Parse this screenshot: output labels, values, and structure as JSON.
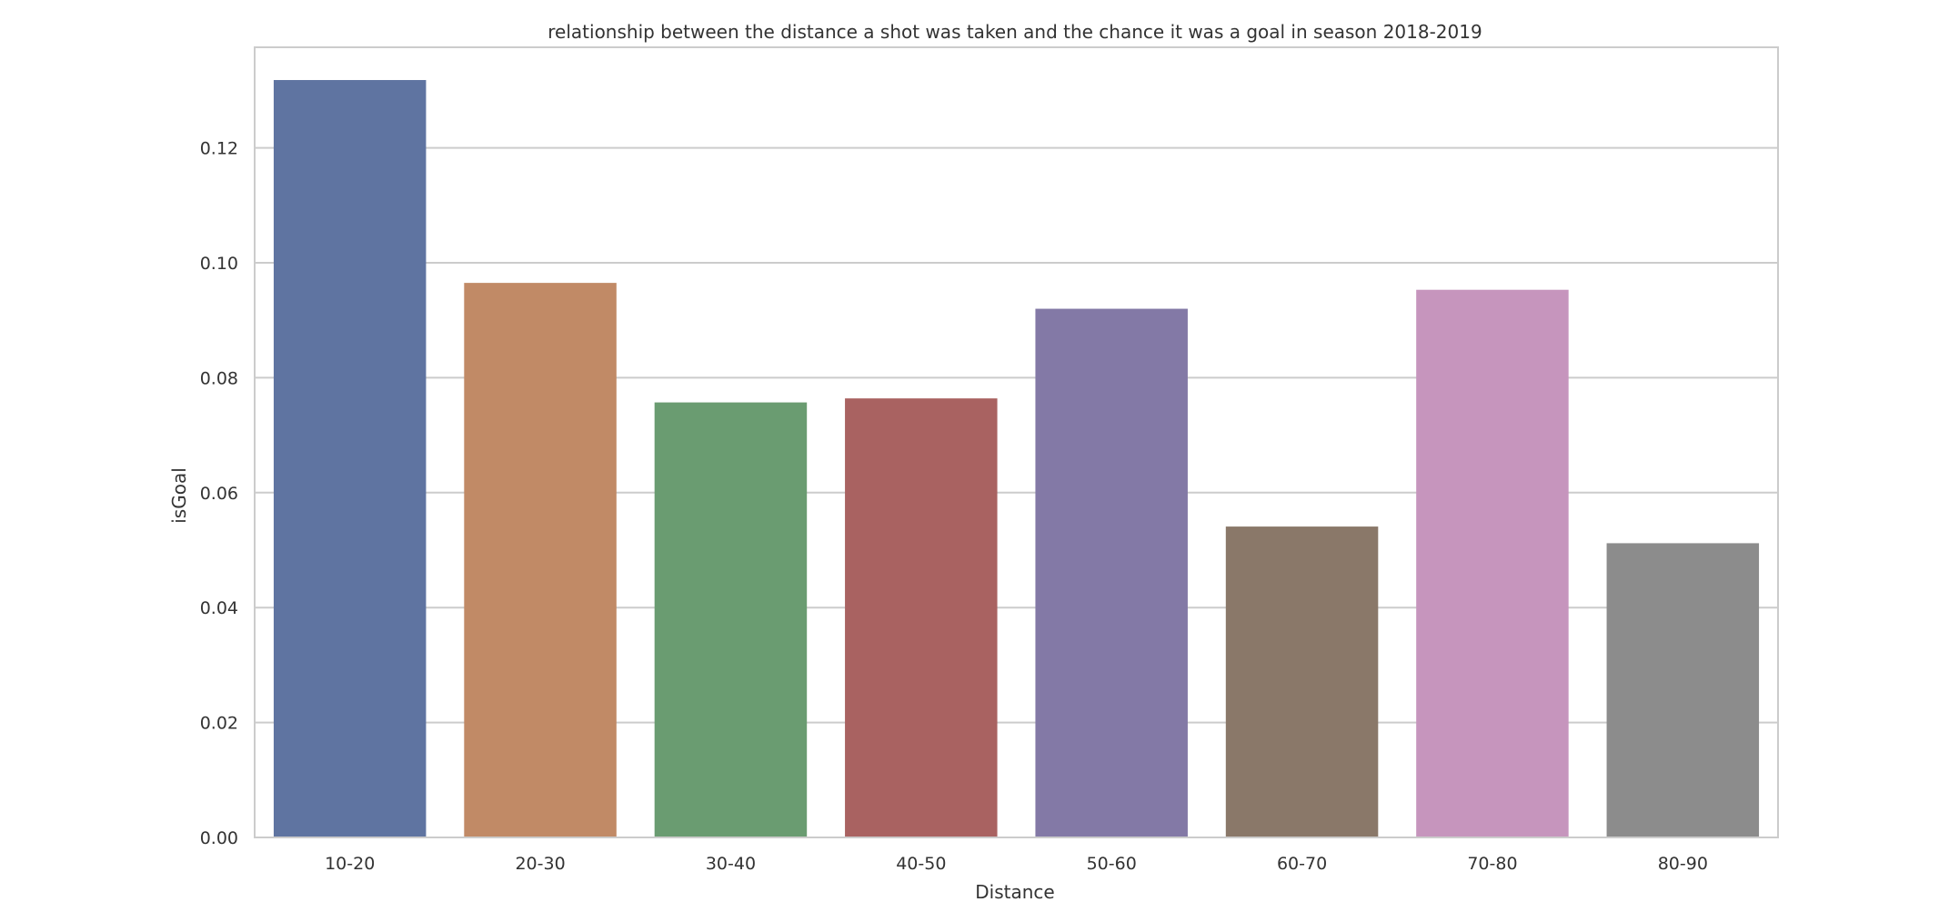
{
  "chart_data": {
    "type": "bar",
    "title": "relationship between the distance a shot was taken and the chance it was a goal in season 2018-2019",
    "xlabel": "Distance",
    "ylabel": "isGoal",
    "categories": [
      "10-20",
      "20-30",
      "30-40",
      "40-50",
      "50-60",
      "60-70",
      "70-80",
      "80-90"
    ],
    "values": [
      0.1318,
      0.0965,
      0.0757,
      0.0764,
      0.092,
      0.0541,
      0.0953,
      0.0512
    ],
    "colors": [
      "#5f74a1",
      "#c18a66",
      "#6a9c71",
      "#a96261",
      "#8379a6",
      "#8a7869",
      "#c695bd",
      "#8c8c8c"
    ],
    "ylim": [
      0,
      0.1375
    ],
    "yticks": [
      "0.00",
      "0.02",
      "0.04",
      "0.06",
      "0.08",
      "0.10",
      "0.12"
    ],
    "ytick_values": [
      0,
      0.02,
      0.04,
      0.06,
      0.08,
      0.1,
      0.12
    ],
    "grid": true,
    "grid_color": "#cccccc",
    "frame_color": "#cccccc"
  }
}
